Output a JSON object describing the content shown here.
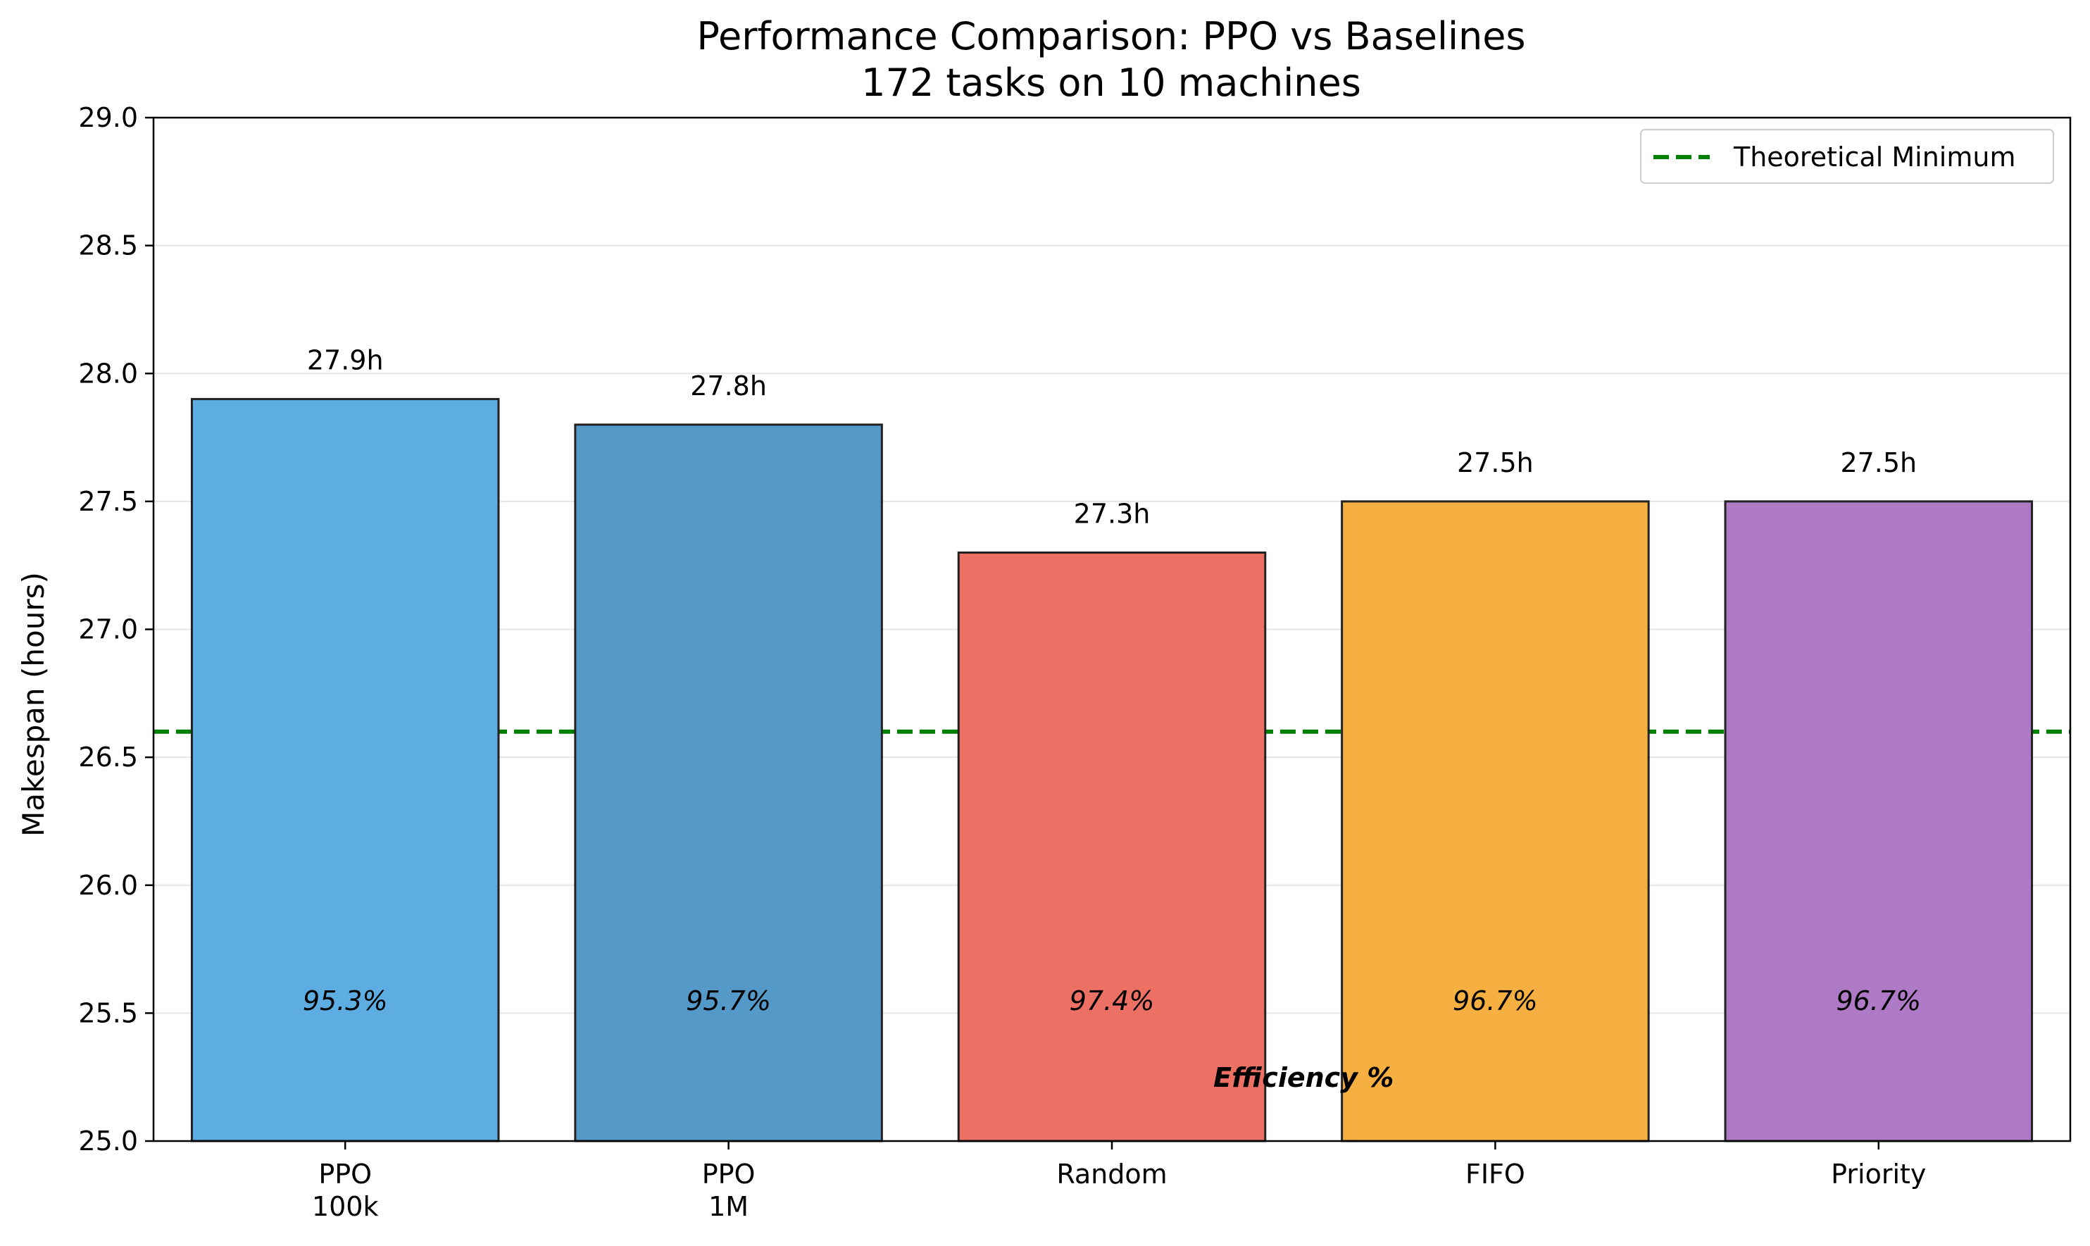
{
  "chart_data": {
    "type": "bar",
    "title": "Performance Comparison: PPO vs Baselines",
    "subtitle": "172 tasks on 10 machines",
    "xlabel": "",
    "ylabel": "Makespan (hours)",
    "ylim": [
      25.0,
      29.0
    ],
    "yticks": [
      "25.0",
      "25.5",
      "26.0",
      "26.5",
      "27.0",
      "27.5",
      "28.0",
      "28.5",
      "29.0"
    ],
    "grid": "horizontal",
    "legend_position": "top-right",
    "categories": [
      [
        "PPO",
        "100k"
      ],
      [
        "PPO",
        "1M"
      ],
      [
        "Random"
      ],
      [
        "FIFO"
      ],
      [
        "Priority"
      ]
    ],
    "values": [
      27.9,
      27.8,
      27.3,
      27.5,
      27.5
    ],
    "value_labels": [
      "27.9h",
      "27.8h",
      "27.3h",
      "27.5h",
      "27.5h"
    ],
    "efficiency_labels": [
      "95.3%",
      "95.7%",
      "97.4%",
      "96.7%",
      "96.7%"
    ],
    "efficiency_label_y": 25.55,
    "efficiency_note": "Efficiency %",
    "efficiency_note_y": 25.25,
    "colors": [
      "#5DADE2",
      "#5499C7",
      "#EC7063",
      "#F5B041",
      "#AF7AC5"
    ],
    "reference_line": {
      "label": "Theoretical Minimum",
      "value": 26.6,
      "color": "#008000",
      "style": "dashed"
    }
  }
}
